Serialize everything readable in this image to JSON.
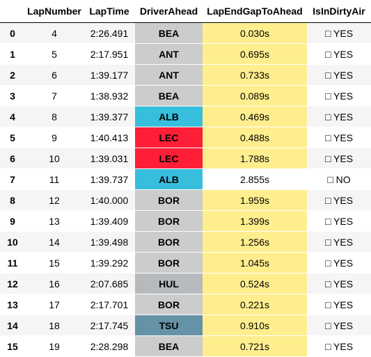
{
  "table": {
    "columns": [
      "",
      "LapNumber",
      "LapTime",
      "DriverAhead",
      "LapEndGapToAhead",
      "IsInDirtyAir"
    ],
    "colors": {
      "BEA": "#cccccc",
      "ANT": "#cccccc",
      "ALB": "#37bedd",
      "LEC": "#ff1e37",
      "BOR": "#cccccc",
      "HUL": "#b6babd",
      "TSU": "#6692a8",
      "gap_highlight": "#ffee8e",
      "gap_plain": "#ffffff"
    },
    "rows": [
      {
        "index": "0",
        "lap": "4",
        "time": "2:26.491",
        "driver": "BEA",
        "gap": "0.030s",
        "dirty": "□ YES",
        "dirty_bool": true,
        "driver_color": "#cccccc"
      },
      {
        "index": "1",
        "lap": "5",
        "time": "2:17.951",
        "driver": "ANT",
        "gap": "0.695s",
        "dirty": "□ YES",
        "dirty_bool": true,
        "driver_color": "#cccccc"
      },
      {
        "index": "2",
        "lap": "6",
        "time": "1:39.177",
        "driver": "ANT",
        "gap": "0.733s",
        "dirty": "□ YES",
        "dirty_bool": true,
        "driver_color": "#cccccc"
      },
      {
        "index": "3",
        "lap": "7",
        "time": "1:38.932",
        "driver": "BEA",
        "gap": "0.089s",
        "dirty": "□ YES",
        "dirty_bool": true,
        "driver_color": "#cccccc"
      },
      {
        "index": "4",
        "lap": "8",
        "time": "1:39.377",
        "driver": "ALB",
        "gap": "0.469s",
        "dirty": "□ YES",
        "dirty_bool": true,
        "driver_color": "#37bedd"
      },
      {
        "index": "5",
        "lap": "9",
        "time": "1:40.413",
        "driver": "LEC",
        "gap": "0.488s",
        "dirty": "□ YES",
        "dirty_bool": true,
        "driver_color": "#ff1e37"
      },
      {
        "index": "6",
        "lap": "10",
        "time": "1:39.031",
        "driver": "LEC",
        "gap": "1.788s",
        "dirty": "□ YES",
        "dirty_bool": true,
        "driver_color": "#ff1e37"
      },
      {
        "index": "7",
        "lap": "11",
        "time": "1:39.737",
        "driver": "ALB",
        "gap": "2.855s",
        "dirty": "□ NO",
        "dirty_bool": false,
        "driver_color": "#37bedd"
      },
      {
        "index": "8",
        "lap": "12",
        "time": "1:40.000",
        "driver": "BOR",
        "gap": "1.959s",
        "dirty": "□ YES",
        "dirty_bool": true,
        "driver_color": "#cccccc"
      },
      {
        "index": "9",
        "lap": "13",
        "time": "1:39.409",
        "driver": "BOR",
        "gap": "1.399s",
        "dirty": "□ YES",
        "dirty_bool": true,
        "driver_color": "#cccccc"
      },
      {
        "index": "10",
        "lap": "14",
        "time": "1:39.498",
        "driver": "BOR",
        "gap": "1.256s",
        "dirty": "□ YES",
        "dirty_bool": true,
        "driver_color": "#cccccc"
      },
      {
        "index": "11",
        "lap": "15",
        "time": "1:39.292",
        "driver": "BOR",
        "gap": "1.045s",
        "dirty": "□ YES",
        "dirty_bool": true,
        "driver_color": "#cccccc"
      },
      {
        "index": "12",
        "lap": "16",
        "time": "2:07.685",
        "driver": "HUL",
        "gap": "0.524s",
        "dirty": "□ YES",
        "dirty_bool": true,
        "driver_color": "#b6babd"
      },
      {
        "index": "13",
        "lap": "17",
        "time": "2:17.701",
        "driver": "BOR",
        "gap": "0.221s",
        "dirty": "□ YES",
        "dirty_bool": true,
        "driver_color": "#cccccc"
      },
      {
        "index": "14",
        "lap": "18",
        "time": "2:17.745",
        "driver": "TSU",
        "gap": "0.910s",
        "dirty": "□ YES",
        "dirty_bool": true,
        "driver_color": "#6692a8"
      },
      {
        "index": "15",
        "lap": "19",
        "time": "2:28.298",
        "driver": "BEA",
        "gap": "0.721s",
        "dirty": "□ YES",
        "dirty_bool": true,
        "driver_color": "#cccccc"
      }
    ]
  }
}
